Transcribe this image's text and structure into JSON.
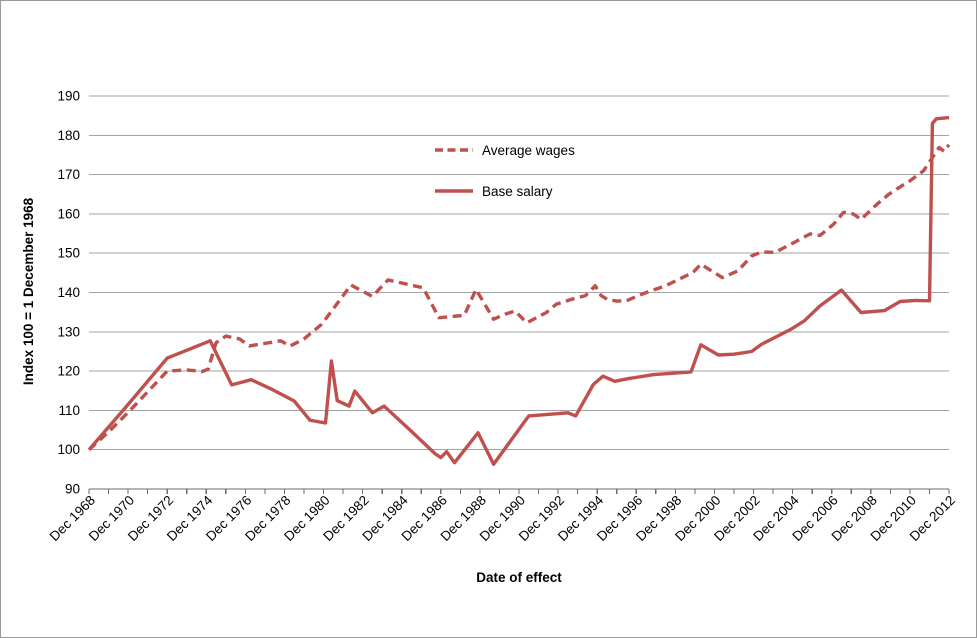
{
  "chart_data": {
    "type": "line",
    "title": "",
    "xlabel": "Date of effect",
    "ylabel": "Index 100 = 1 December 1968",
    "xlim": [
      0,
      44
    ],
    "ylim": [
      90,
      190
    ],
    "x_unit_note": "x values are years after Dec 1968; 44 = Dec 2012",
    "grid": true,
    "grid_color": "#A3A3A3",
    "axis_color": "#6B6B6B",
    "accent_color": "#C0504D",
    "legend_position": "inside-top-center",
    "y_ticks": [
      90,
      100,
      110,
      120,
      130,
      140,
      150,
      160,
      170,
      180,
      190
    ],
    "y_tick_labels": [
      "90",
      "100",
      "110",
      "120",
      "130",
      "140",
      "150",
      "160",
      "170",
      "180",
      "190"
    ],
    "x_tick_interval_years": 2,
    "x_minor_tick_years": 1,
    "x_tick_labels": [
      "Dec 1968",
      "Dec 1970",
      "Dec 1972",
      "Dec 1974",
      "Dec 1976",
      "Dec 1978",
      "Dec 1980",
      "Dec 1982",
      "Dec 1984",
      "Dec 1986",
      "Dec 1988",
      "Dec 1990",
      "Dec 1992",
      "Dec 1994",
      "Dec 1996",
      "Dec 1998",
      "Dec 2000",
      "Dec 2002",
      "Dec 2004",
      "Dec 2006",
      "Dec 2008",
      "Dec 2010",
      "Dec 2012"
    ],
    "series": [
      {
        "name": "Average wages",
        "style": "dashed",
        "color": "#C0504D",
        "points": [
          [
            0,
            100
          ],
          [
            1,
            104.5
          ],
          [
            2,
            109.5
          ],
          [
            3,
            114.7
          ],
          [
            4,
            120
          ],
          [
            5,
            120.3
          ],
          [
            5.8,
            119.9
          ],
          [
            6.1,
            120.5
          ],
          [
            6.5,
            127.2
          ],
          [
            7.0,
            128.9
          ],
          [
            7.7,
            128.2
          ],
          [
            8.2,
            126.4
          ],
          [
            9.3,
            127.3
          ],
          [
            9.8,
            127.7
          ],
          [
            10.3,
            126.4
          ],
          [
            11.0,
            128.2
          ],
          [
            11.9,
            131.9
          ],
          [
            12.4,
            135.2
          ],
          [
            13.4,
            141.9
          ],
          [
            14.5,
            139.0
          ],
          [
            15.3,
            143.2
          ],
          [
            16.2,
            142.2
          ],
          [
            17.1,
            141.2
          ],
          [
            17.9,
            133.6
          ],
          [
            18.6,
            133.9
          ],
          [
            19.2,
            134.2
          ],
          [
            19.8,
            140.8
          ],
          [
            20.7,
            133.2
          ],
          [
            21.3,
            134.5
          ],
          [
            21.8,
            135.3
          ],
          [
            22.4,
            132.3
          ],
          [
            23.4,
            134.9
          ],
          [
            23.9,
            137.0
          ],
          [
            24.7,
            138.3
          ],
          [
            25.4,
            139.2
          ],
          [
            25.9,
            141.7
          ],
          [
            26.2,
            139.2
          ],
          [
            26.5,
            138.3
          ],
          [
            27.0,
            137.8
          ],
          [
            27.5,
            137.9
          ],
          [
            28.1,
            139.2
          ],
          [
            28.8,
            140.5
          ],
          [
            29.5,
            141.7
          ],
          [
            30.2,
            143.4
          ],
          [
            30.9,
            145.1
          ],
          [
            31.3,
            147.2
          ],
          [
            32.4,
            143.8
          ],
          [
            33.2,
            145.5
          ],
          [
            33.9,
            149.3
          ],
          [
            34.4,
            150.3
          ],
          [
            35.1,
            150.2
          ],
          [
            36.1,
            152.8
          ],
          [
            36.9,
            154.9
          ],
          [
            37.4,
            154.5
          ],
          [
            38.1,
            157.4
          ],
          [
            38.6,
            160.4
          ],
          [
            39.1,
            160.0
          ],
          [
            39.5,
            158.6
          ],
          [
            40.3,
            162.4
          ],
          [
            40.9,
            164.9
          ],
          [
            41.7,
            167.5
          ],
          [
            42.0,
            168.4
          ],
          [
            42.7,
            171.0
          ],
          [
            43.5,
            176.9
          ],
          [
            43.75,
            175.9
          ],
          [
            44,
            177.6
          ]
        ]
      },
      {
        "name": "Base salary",
        "style": "solid",
        "color": "#C0504D",
        "points": [
          [
            0,
            100
          ],
          [
            2,
            111.5
          ],
          [
            4,
            123.3
          ],
          [
            5,
            125.3
          ],
          [
            6.2,
            127.7
          ],
          [
            7.3,
            116.5
          ],
          [
            8.3,
            117.8
          ],
          [
            9.3,
            115.5
          ],
          [
            10.5,
            112.4
          ],
          [
            11.3,
            107.5
          ],
          [
            12.1,
            106.8
          ],
          [
            12.4,
            122.6
          ],
          [
            12.7,
            112.5
          ],
          [
            13.3,
            111.1
          ],
          [
            13.6,
            114.9
          ],
          [
            14.5,
            109.4
          ],
          [
            15.1,
            111.1
          ],
          [
            16.3,
            105.6
          ],
          [
            17.7,
            99.0
          ],
          [
            18.0,
            98.0
          ],
          [
            18.3,
            99.5
          ],
          [
            18.7,
            96.7
          ],
          [
            19.9,
            104.3
          ],
          [
            20.7,
            96.3
          ],
          [
            22.5,
            108.6
          ],
          [
            24.5,
            109.4
          ],
          [
            24.9,
            108.6
          ],
          [
            25.8,
            116.6
          ],
          [
            26.3,
            118.7
          ],
          [
            26.9,
            117.4
          ],
          [
            27.6,
            118.1
          ],
          [
            28.9,
            119.1
          ],
          [
            30.8,
            119.8
          ],
          [
            31.3,
            126.7
          ],
          [
            32.2,
            124.1
          ],
          [
            33.0,
            124.3
          ],
          [
            33.9,
            125.0
          ],
          [
            34.4,
            126.8
          ],
          [
            35.9,
            130.6
          ],
          [
            36.6,
            132.8
          ],
          [
            37.4,
            136.6
          ],
          [
            38.5,
            140.6
          ],
          [
            39.5,
            134.9
          ],
          [
            40.7,
            135.4
          ],
          [
            41.5,
            137.7
          ],
          [
            42.3,
            138.0
          ],
          [
            43.0,
            137.9
          ],
          [
            43.15,
            183.0
          ],
          [
            43.35,
            184.2
          ],
          [
            44,
            184.5
          ]
        ]
      }
    ]
  }
}
